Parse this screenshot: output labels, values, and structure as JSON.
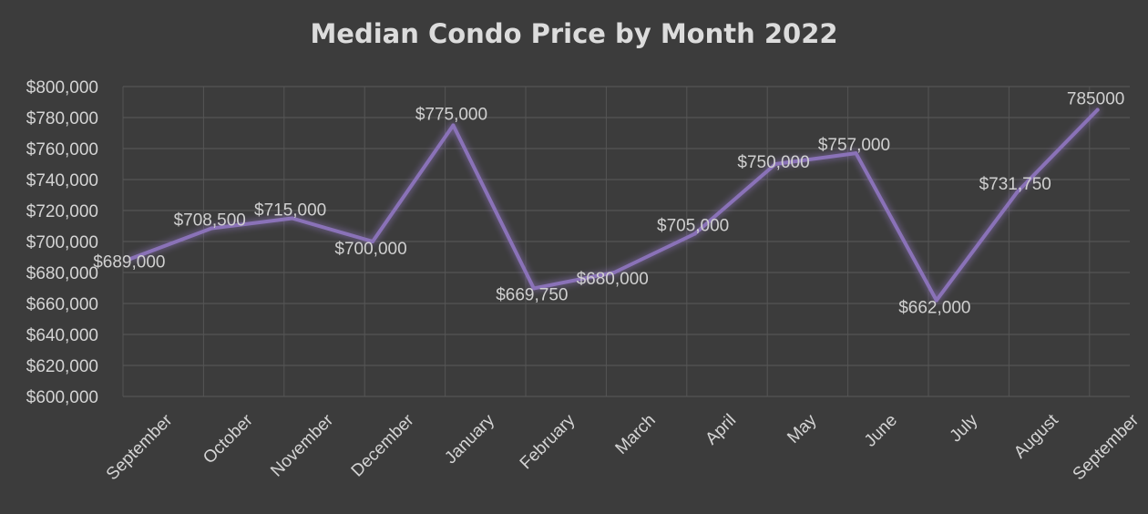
{
  "chart_data": {
    "type": "line",
    "title": "Median Condo Price by Month 2022",
    "xlabel": "",
    "ylabel": "",
    "categories": [
      "September",
      "October",
      "November",
      "December",
      "January",
      "February",
      "March",
      "April",
      "May",
      "June",
      "July",
      "August",
      "September"
    ],
    "series": [
      {
        "values": [
          689000,
          708500,
          715000,
          700000,
          775000,
          669750,
          680000,
          705000,
          750000,
          757000,
          662000,
          731750,
          785000
        ]
      }
    ],
    "data_labels": [
      "$689,000",
      "$708,500",
      "$715,000",
      "$700,000",
      "$775,000",
      "$669,750",
      "$680,000",
      "$705,000",
      "$750,000",
      "$757,000",
      "$662,000",
      "$731,750",
      "785000"
    ],
    "y_ticks": [
      "$600,000",
      "$620,000",
      "$640,000",
      "$660,000",
      "$680,000",
      "$700,000",
      "$720,000",
      "$740,000",
      "$760,000",
      "$780,000",
      "$800,000"
    ],
    "ylim": [
      600000,
      800000
    ],
    "grid": true,
    "line_color": "#8a72b8",
    "background": "#3c3c3c"
  }
}
